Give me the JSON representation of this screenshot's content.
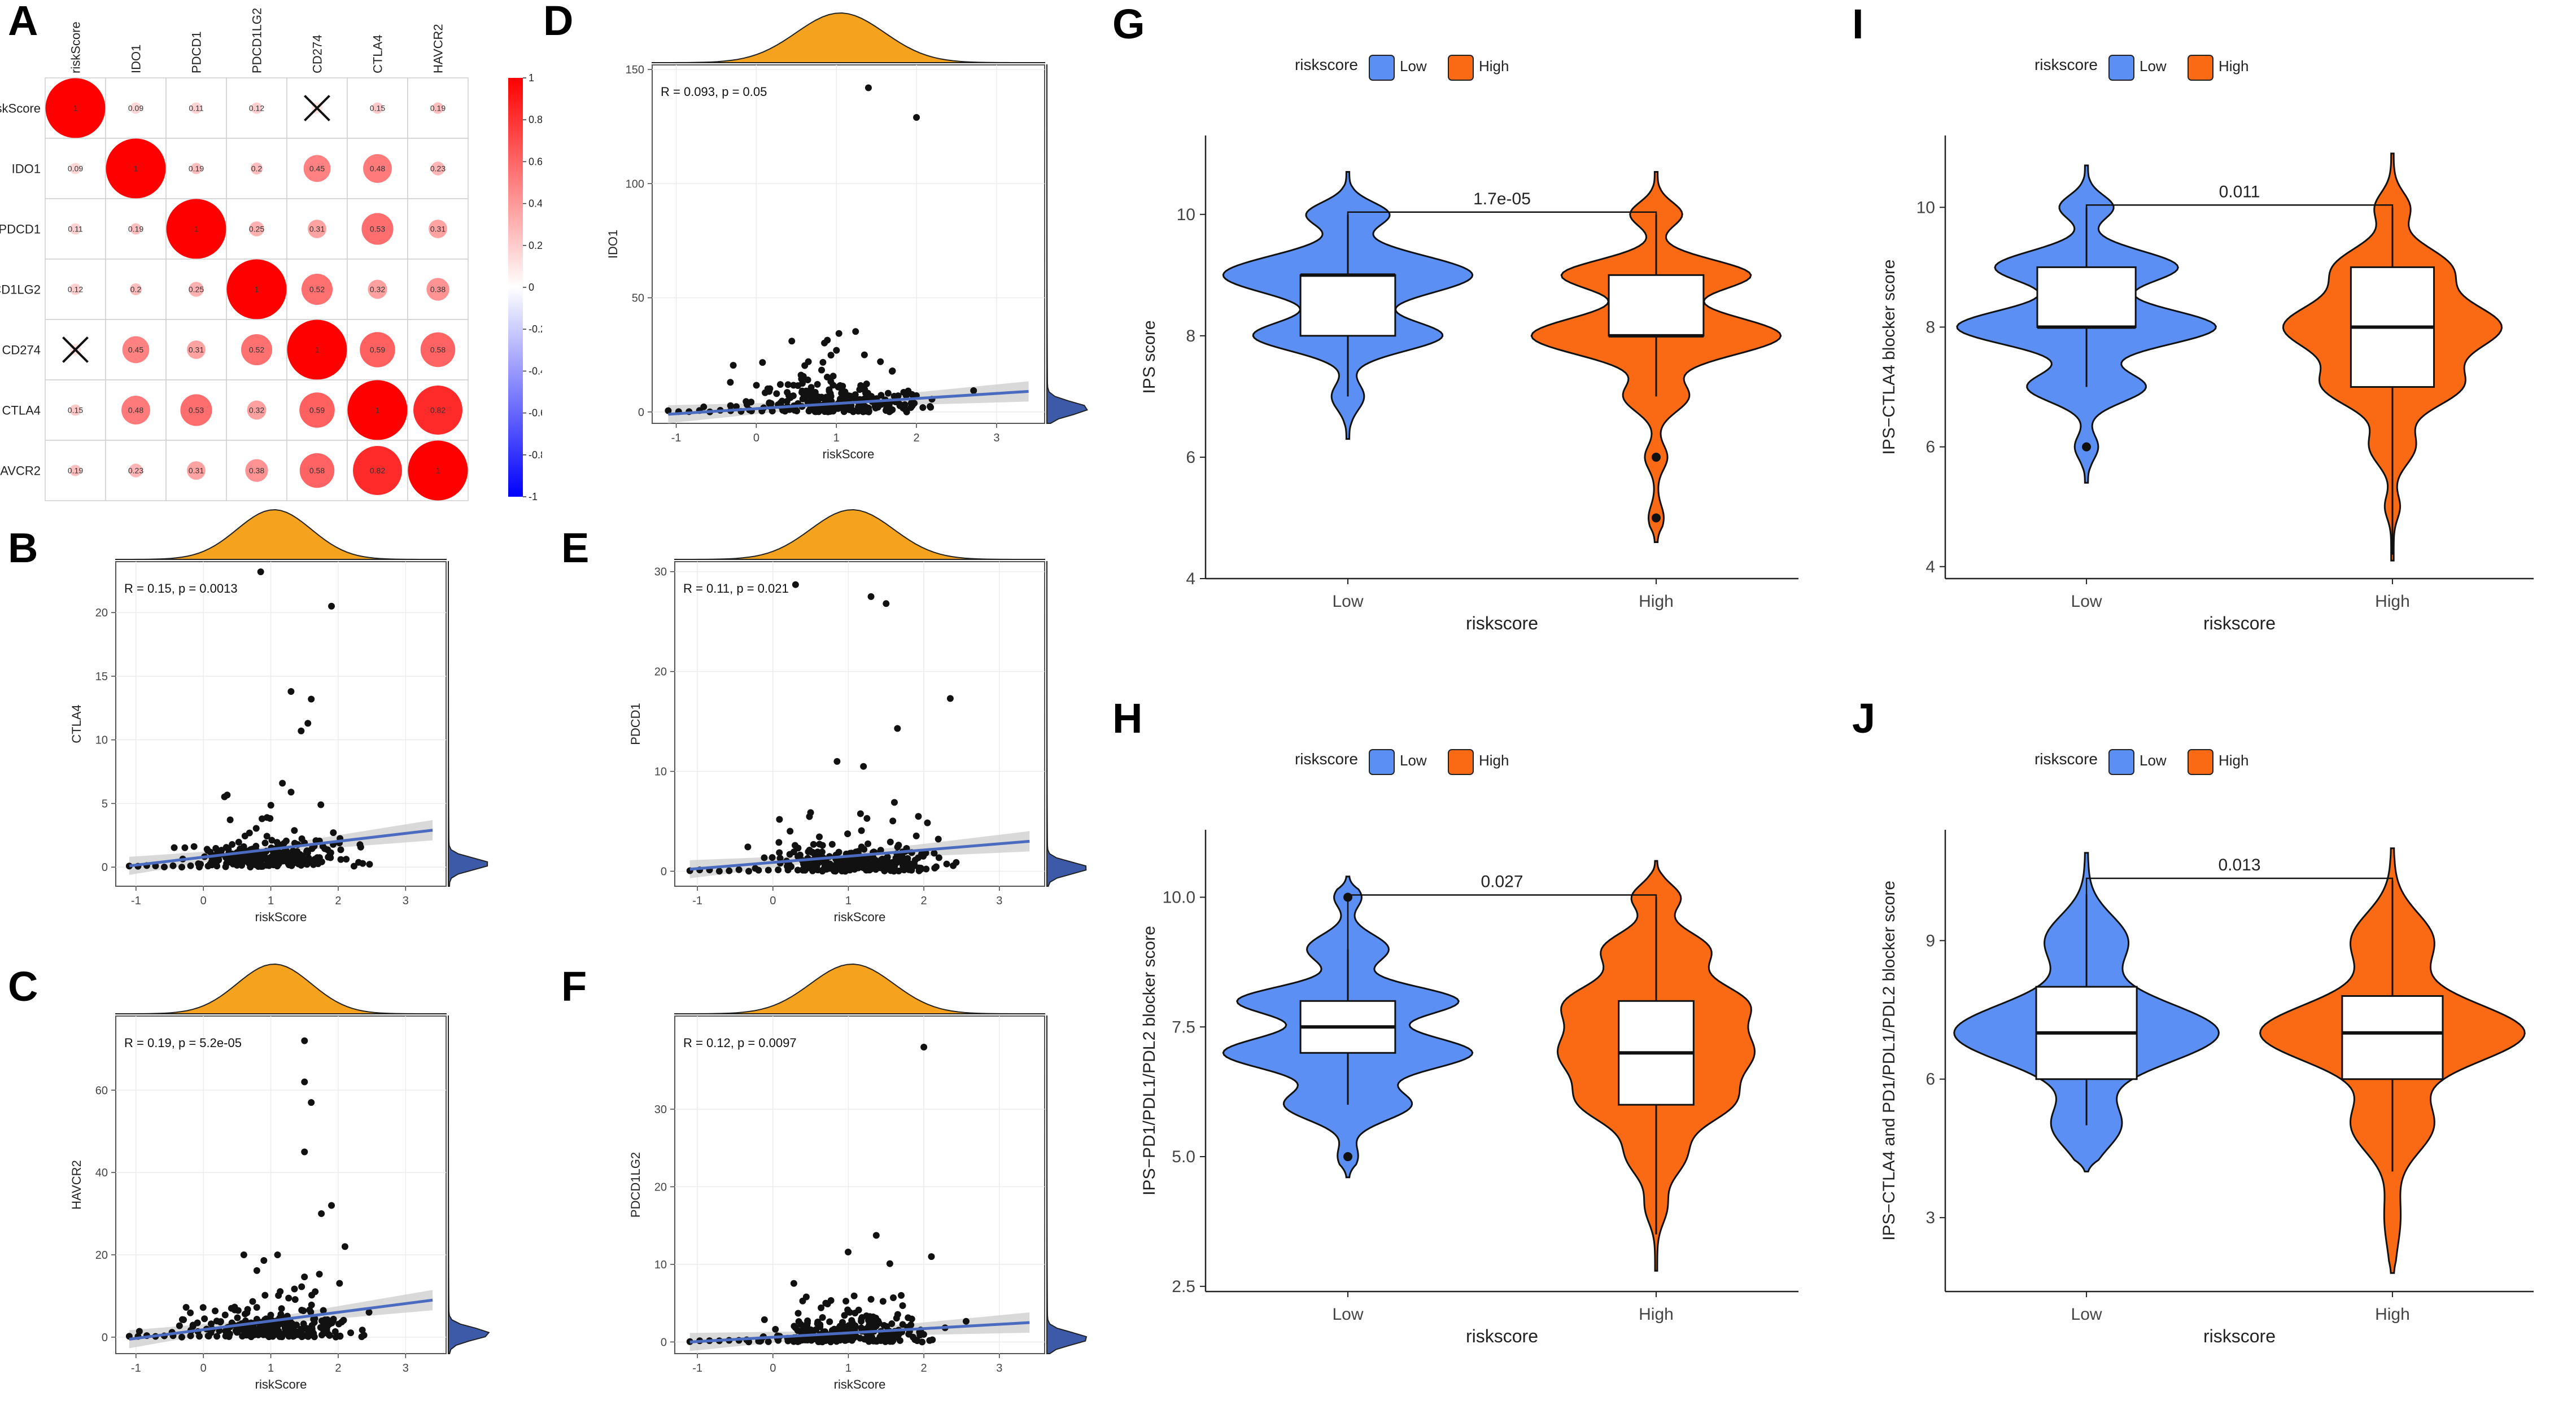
{
  "panel_labels": {
    "A": "A",
    "B": "B",
    "C": "C",
    "D": "D",
    "E": "E",
    "F": "F",
    "G": "G",
    "H": "H",
    "I": "I",
    "J": "J"
  },
  "colors": {
    "low": "#5b8ff4",
    "high": "#fa6a14",
    "density": "#f5a31f",
    "density_right": "#3c5aa8",
    "fit_line": "#4a6bbf",
    "band": "#cfcfcf",
    "pos": "#ff0000",
    "neg": "#0000ff"
  },
  "chart_data": [
    {
      "id": "A",
      "type": "heatmap",
      "labels": [
        "riskScore",
        "IDO1",
        "PDCD1",
        "PDCD1LG2",
        "CD274",
        "CTLA4",
        "HAVCR2"
      ],
      "matrix": [
        [
          1,
          0.09,
          0.11,
          0.12,
          0.03,
          0.15,
          0.19
        ],
        [
          0.09,
          1,
          0.19,
          0.2,
          0.45,
          0.48,
          0.23
        ],
        [
          0.11,
          0.19,
          1,
          0.25,
          0.31,
          0.53,
          0.31
        ],
        [
          0.12,
          0.2,
          0.25,
          1,
          0.52,
          0.32,
          0.38
        ],
        [
          0.03,
          0.45,
          0.31,
          0.52,
          1,
          0.59,
          0.58
        ],
        [
          0.15,
          0.48,
          0.53,
          0.32,
          0.59,
          1,
          0.82
        ],
        [
          0.19,
          0.23,
          0.31,
          0.38,
          0.58,
          0.82,
          1
        ]
      ],
      "display": [
        [
          "1",
          "0.09",
          "0.11",
          "0.12",
          "",
          "0.15",
          "0.19"
        ],
        [
          "0.09",
          "1",
          "0.19",
          "0.2",
          "0.45",
          "0.48",
          "0.23"
        ],
        [
          "0.11",
          "0.19",
          "1",
          "0.25",
          "0.31",
          "0.53",
          "0.31"
        ],
        [
          "0.12",
          "0.2",
          "0.25",
          "1",
          "0.52",
          "0.32",
          "0.38"
        ],
        [
          "",
          "0.45",
          "0.31",
          "0.52",
          "1",
          "0.59",
          "0.58"
        ],
        [
          "0.15",
          "0.48",
          "0.53",
          "0.32",
          "0.59",
          "1",
          "0.82"
        ],
        [
          "0.19",
          "0.23",
          "0.31",
          "0.38",
          "0.58",
          "0.82",
          "1"
        ]
      ],
      "crossed": [
        [
          0,
          4
        ],
        [
          4,
          0
        ]
      ],
      "colorbar_ticks": [
        "1",
        "0.8",
        "0.6",
        "0.4",
        "0.2",
        "0",
        "-0.2",
        "-0.4",
        "-0.6",
        "-0.8",
        "-1"
      ],
      "colorbar_values": [
        1,
        0.8,
        0.6,
        0.4,
        0.2,
        0,
        -0.2,
        -0.4,
        -0.6,
        -0.8,
        -1
      ]
    },
    {
      "id": "B",
      "type": "scatter",
      "xlabel": "riskScore",
      "ylabel": "CTLA4",
      "annotation": "R = 0.15, p = 0.0013",
      "xlim": [
        -1.3,
        3.6
      ],
      "ylim": [
        -1.5,
        24
      ],
      "xticks": [
        -1,
        0,
        1,
        2,
        3
      ],
      "yticks": [
        0,
        5,
        10,
        15,
        20
      ],
      "fit": [
        [
          -1.1,
          0.1
        ],
        [
          3.4,
          2.9
        ]
      ],
      "outliers": [
        [
          1.9,
          20.5
        ],
        [
          0.85,
          23.2
        ],
        [
          1.3,
          13.8
        ],
        [
          1.6,
          13.2
        ],
        [
          1.55,
          11.3
        ],
        [
          1.45,
          10.7
        ]
      ],
      "seed": 11
    },
    {
      "id": "C",
      "type": "scatter",
      "xlabel": "riskScore",
      "ylabel": "HAVCR2",
      "annotation": "R = 0.19, p = 5.2e-05",
      "xlim": [
        -1.3,
        3.6
      ],
      "ylim": [
        -4,
        78
      ],
      "xticks": [
        -1,
        0,
        1,
        2,
        3
      ],
      "yticks": [
        0,
        20,
        40,
        60
      ],
      "fit": [
        [
          -1.1,
          -0.5
        ],
        [
          3.4,
          9
        ]
      ],
      "outliers": [
        [
          1.5,
          72
        ],
        [
          1.5,
          62
        ],
        [
          1.6,
          57
        ],
        [
          1.5,
          45
        ],
        [
          1.9,
          32
        ],
        [
          1.75,
          30
        ],
        [
          1.1,
          20
        ],
        [
          0.6,
          20
        ],
        [
          2.1,
          22
        ]
      ],
      "seed": 23
    },
    {
      "id": "D",
      "type": "scatter",
      "xlabel": "riskScore",
      "ylabel": "IDO1",
      "annotation": "R = 0.093, p = 0.05",
      "xlim": [
        -1.3,
        3.6
      ],
      "ylim": [
        -5,
        152
      ],
      "xticks": [
        -1,
        0,
        1,
        2,
        3
      ],
      "yticks": [
        0,
        50,
        100,
        150
      ],
      "fit": [
        [
          -1.1,
          -1
        ],
        [
          3.4,
          9
        ]
      ],
      "outliers": [
        [
          1.4,
          142
        ],
        [
          2.0,
          129
        ],
        [
          1.35,
          25
        ],
        [
          1.7,
          18
        ],
        [
          0.65,
          22
        ],
        [
          1.55,
          22
        ]
      ],
      "seed": 37
    },
    {
      "id": "E",
      "type": "scatter",
      "xlabel": "riskScore",
      "ylabel": "PDCD1",
      "annotation": "R = 0.11, p = 0.021",
      "xlim": [
        -1.3,
        3.6
      ],
      "ylim": [
        -1.5,
        31
      ],
      "xticks": [
        -1,
        0,
        1,
        2,
        3
      ],
      "yticks": [
        0,
        10,
        20,
        30
      ],
      "fit": [
        [
          -1.1,
          0.2
        ],
        [
          3.4,
          3
        ]
      ],
      "outliers": [
        [
          0.3,
          28.7
        ],
        [
          1.3,
          27.5
        ],
        [
          1.5,
          26.8
        ],
        [
          2.35,
          17.3
        ],
        [
          1.65,
          14.3
        ],
        [
          0.85,
          11
        ],
        [
          1.2,
          10.5
        ]
      ],
      "seed": 41
    },
    {
      "id": "F",
      "type": "scatter",
      "xlabel": "riskScore",
      "ylabel": "PDCD1LG2",
      "annotation": "R = 0.12, p = 0.0097",
      "xlim": [
        -1.3,
        3.6
      ],
      "ylim": [
        -1.5,
        42
      ],
      "xticks": [
        -1,
        0,
        1,
        2,
        3
      ],
      "yticks": [
        0,
        10,
        20,
        30
      ],
      "fit": [
        [
          -1.1,
          0
        ],
        [
          3.4,
          2.5
        ]
      ],
      "outliers": [
        [
          2.0,
          38
        ],
        [
          2.1,
          11
        ],
        [
          1.7,
          6
        ],
        [
          0.7,
          5
        ],
        [
          1.3,
          5.5
        ]
      ],
      "seed": 53
    },
    {
      "id": "G",
      "type": "violin",
      "ylabel": "IPS score",
      "xlabel": "riskscore",
      "legend_title": "riskscore",
      "groups": [
        "Low",
        "High"
      ],
      "pvalue": "1.7e-05",
      "ylim": [
        4,
        11.3
      ],
      "yticks": [
        4,
        6,
        8,
        10
      ],
      "ytick_labels": [
        "4",
        "6",
        "8",
        "10"
      ],
      "low": {
        "min": 6.3,
        "max": 10.7,
        "modes": [
          [
            9,
            0.32,
            1
          ],
          [
            8,
            0.25,
            0.75
          ],
          [
            10,
            0.2,
            0.32
          ],
          [
            7,
            0.22,
            0.12
          ]
        ],
        "box": [
          8,
          9,
          9,
          7,
          10
        ],
        "outliers": [],
        "width": 0.43
      },
      "high": {
        "min": 4.6,
        "max": 10.7,
        "modes": [
          [
            8,
            0.32,
            1
          ],
          [
            9,
            0.25,
            0.75
          ],
          [
            10,
            0.2,
            0.2
          ],
          [
            7,
            0.25,
            0.25
          ],
          [
            6,
            0.2,
            0.08
          ],
          [
            5,
            0.2,
            0.05
          ]
        ],
        "box": [
          8,
          9,
          8,
          7,
          10
        ],
        "outliers": [
          6,
          5
        ],
        "width": 0.43
      }
    },
    {
      "id": "H",
      "type": "violin",
      "ylabel": "IPS−PD1/PDL1/PDL2 blocker score",
      "xlabel": "riskscore",
      "legend_title": "riskscore",
      "groups": [
        "Low",
        "High"
      ],
      "pvalue": "0.027",
      "ylim": [
        2.4,
        11.3
      ],
      "yticks": [
        2.5,
        5,
        7.5,
        10
      ],
      "ytick_labels": [
        "2.5",
        "5.0",
        "7.5",
        "10.0"
      ],
      "low": {
        "min": 4.6,
        "max": 10.4,
        "modes": [
          [
            7,
            0.33,
            1
          ],
          [
            8,
            0.28,
            0.88
          ],
          [
            6,
            0.3,
            0.5
          ],
          [
            9,
            0.28,
            0.32
          ],
          [
            10,
            0.2,
            0.1
          ],
          [
            5,
            0.22,
            0.07
          ]
        ],
        "box": [
          7,
          8,
          7.5,
          6,
          9
        ],
        "outliers": [
          10,
          5
        ],
        "width": 0.43
      },
      "high": {
        "min": 2.8,
        "max": 10.7,
        "modes": [
          [
            7,
            0.5,
            1
          ],
          [
            8,
            0.4,
            0.85
          ],
          [
            6,
            0.4,
            0.7
          ],
          [
            9,
            0.35,
            0.55
          ],
          [
            5,
            0.4,
            0.3
          ],
          [
            10,
            0.25,
            0.25
          ],
          [
            4,
            0.3,
            0.1
          ]
        ],
        "box": [
          6,
          8,
          7,
          3.5,
          10
        ],
        "outliers": [],
        "width": 0.34
      }
    },
    {
      "id": "I",
      "type": "violin",
      "ylabel": "IPS−CTLA4 blocker score",
      "xlabel": "riskscore",
      "legend_title": "riskscore",
      "groups": [
        "Low",
        "High"
      ],
      "pvalue": "0.011",
      "ylim": [
        3.8,
        11.2
      ],
      "yticks": [
        4,
        6,
        8,
        10
      ],
      "ytick_labels": [
        "4",
        "6",
        "8",
        "10"
      ],
      "low": {
        "min": 5.4,
        "max": 10.7,
        "modes": [
          [
            8,
            0.3,
            1
          ],
          [
            9,
            0.27,
            0.7
          ],
          [
            7,
            0.25,
            0.45
          ],
          [
            10,
            0.2,
            0.2
          ],
          [
            6,
            0.2,
            0.08
          ]
        ],
        "box": [
          8,
          9,
          8,
          7,
          10
        ],
        "outliers": [
          6
        ],
        "width": 0.45
      },
      "high": {
        "min": 4.1,
        "max": 10.9,
        "modes": [
          [
            8,
            0.42,
            1
          ],
          [
            7,
            0.35,
            0.6
          ],
          [
            9,
            0.35,
            0.5
          ],
          [
            6,
            0.3,
            0.2
          ],
          [
            10,
            0.25,
            0.15
          ],
          [
            5,
            0.2,
            0.06
          ]
        ],
        "box": [
          7,
          9,
          8,
          4.2,
          10
        ],
        "outliers": [],
        "width": 0.38
      }
    },
    {
      "id": "J",
      "type": "violin",
      "ylabel": "IPS−CTLA4 and PD1/PDL1/PDL2 blocker score",
      "xlabel": "riskscore",
      "legend_title": "riskscore",
      "groups": [
        "Low",
        "High"
      ],
      "pvalue": "0.013",
      "ylim": [
        1.4,
        11.4
      ],
      "yticks": [
        3,
        6,
        9
      ],
      "ytick_labels": [
        "3",
        "6",
        "9"
      ],
      "low": {
        "min": 4,
        "max": 10.9,
        "modes": [
          [
            7,
            0.65,
            1
          ],
          [
            9,
            0.55,
            0.3
          ],
          [
            5,
            0.5,
            0.25
          ]
        ],
        "box": [
          6,
          8,
          7,
          5,
          10
        ],
        "outliers": [],
        "width": 0.46
      },
      "high": {
        "min": 1.8,
        "max": 11,
        "modes": [
          [
            7,
            0.65,
            1
          ],
          [
            9,
            0.6,
            0.3
          ],
          [
            5,
            0.6,
            0.3
          ],
          [
            3,
            0.6,
            0.05
          ]
        ],
        "box": [
          6,
          7.8,
          7,
          4,
          10.3
        ],
        "outliers": [],
        "width": 0.46
      }
    }
  ]
}
